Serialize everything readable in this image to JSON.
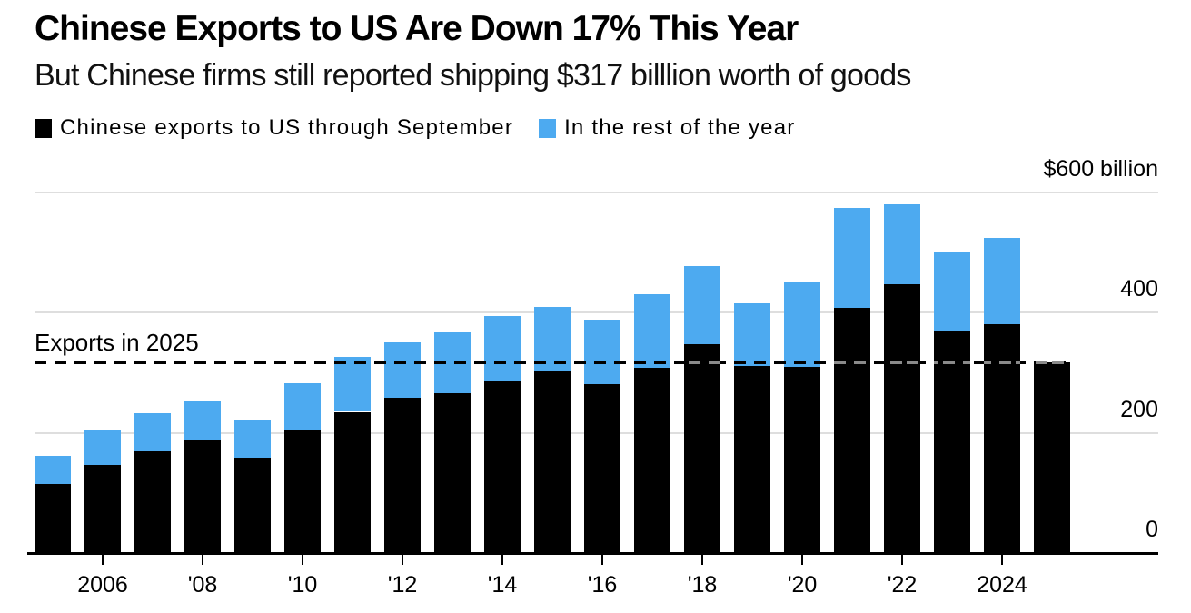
{
  "header": {
    "title": "Chinese Exports to US Are Down 17% This Year",
    "subtitle": "But Chinese firms still reported shipping $317 billlion worth of goods"
  },
  "legend": {
    "items": [
      {
        "label": "Chinese exports to US through September",
        "color": "#000000"
      },
      {
        "label": "In the rest of the year",
        "color": "#4DAAF0"
      }
    ]
  },
  "colors": {
    "through_september": "#000000",
    "rest_of_year": "#4DAAF0",
    "gridline": "#dedede",
    "axis": "#000000",
    "reference_line": "#000000",
    "reference_line_on_bar": "#8a8a8a",
    "background": "#ffffff"
  },
  "chart_data": {
    "type": "bar",
    "stacked": true,
    "title": "Chinese Exports to US Are Down 17% This Year",
    "subtitle": "But Chinese firms still reported shipping $317 billlion worth of goods",
    "xlabel": "",
    "ylabel": "$ billion",
    "ylim": [
      0,
      600
    ],
    "grid": true,
    "legend_position": "top-left",
    "categories": [
      2005,
      2006,
      2007,
      2008,
      2009,
      2010,
      2011,
      2012,
      2013,
      2014,
      2015,
      2016,
      2017,
      2018,
      2019,
      2020,
      2021,
      2022,
      2023,
      2024,
      2025
    ],
    "series": [
      {
        "name": "Chinese exports to US through September",
        "color": "#000000",
        "values": [
          115,
          146,
          169,
          188,
          158,
          205,
          235,
          258,
          266,
          285,
          304,
          281,
          308,
          348,
          311,
          310,
          408,
          448,
          370,
          381,
          317
        ]
      },
      {
        "name": "In the rest of the year",
        "color": "#4DAAF0",
        "values": [
          47,
          59,
          63,
          64,
          62,
          77,
          91,
          93,
          102,
          110,
          106,
          108,
          123,
          130,
          105,
          140,
          166,
          132,
          130,
          143,
          0
        ]
      }
    ],
    "totals": [
      162,
      205,
      232,
      252,
      220,
      282,
      326,
      351,
      368,
      395,
      410,
      389,
      431,
      478,
      416,
      450,
      574,
      580,
      500,
      524,
      317
    ],
    "y_axis": {
      "top_label": "$600 billion",
      "tick_values": [
        0,
        200,
        400
      ],
      "tick_labels": [
        "0",
        "200",
        "400"
      ],
      "gridline_values": [
        200,
        400,
        600
      ]
    },
    "x_axis": {
      "ticks": [
        {
          "year": 2006,
          "label": "2006"
        },
        {
          "year": 2008,
          "label": "'08"
        },
        {
          "year": 2010,
          "label": "'10"
        },
        {
          "year": 2012,
          "label": "'12"
        },
        {
          "year": 2014,
          "label": "'14"
        },
        {
          "year": 2016,
          "label": "'16"
        },
        {
          "year": 2018,
          "label": "'18"
        },
        {
          "year": 2020,
          "label": "'20"
        },
        {
          "year": 2022,
          "label": "'22"
        },
        {
          "year": 2024,
          "label": "2024"
        }
      ]
    },
    "reference_line": {
      "label": "Exports in 2025",
      "value": 317
    }
  }
}
